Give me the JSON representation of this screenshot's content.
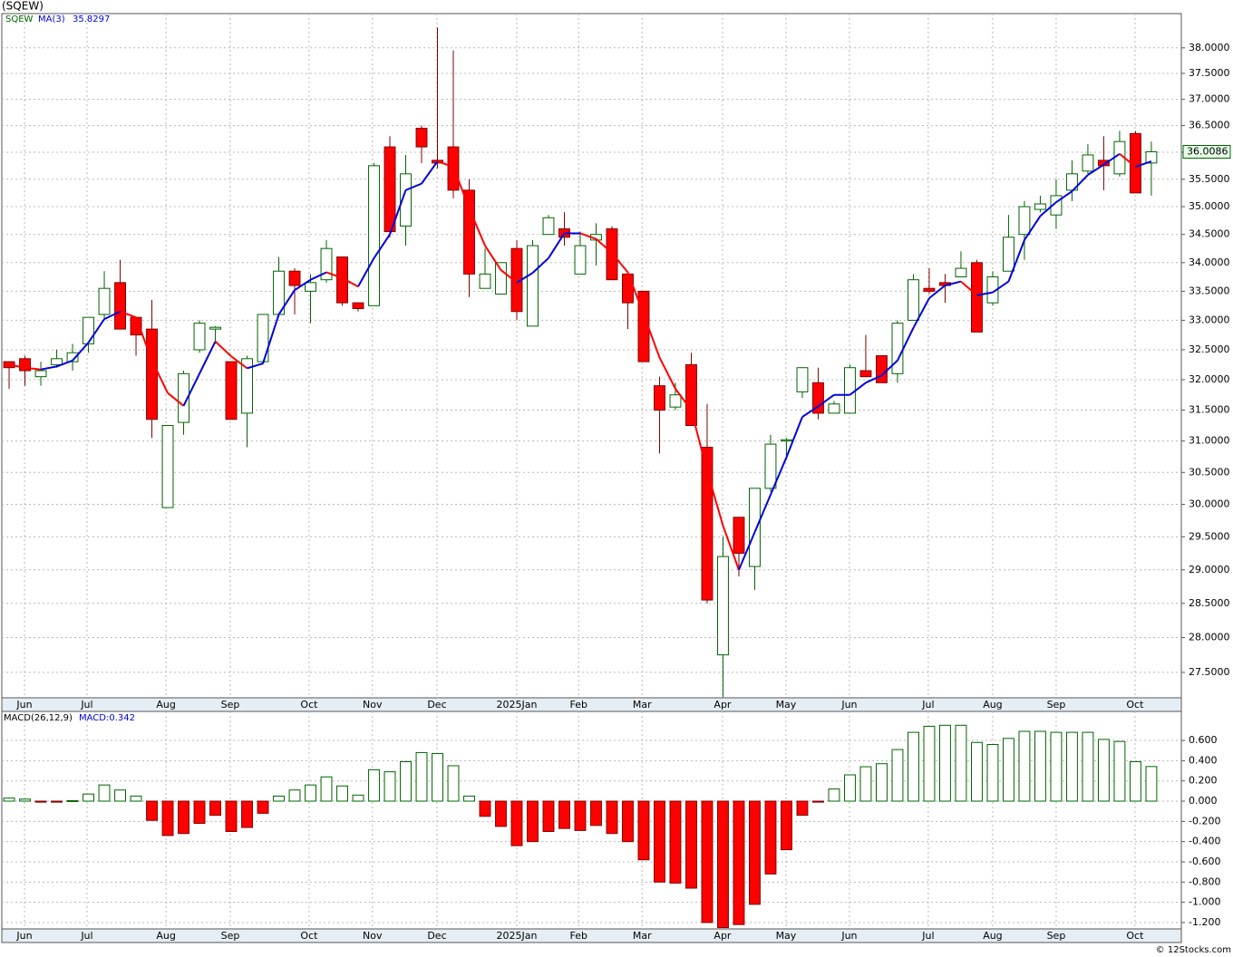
{
  "title": "(SQEW)",
  "footer": "© 12Stocks.com",
  "chart_data": [
    {
      "type": "candlestick",
      "name": "SQEW",
      "log_scale": true,
      "grid": true,
      "up_color": "#006400",
      "down_color": "#ff0000",
      "xlim": [
        -0.46,
        73.89
      ],
      "xticks": [
        {
          "value": 0.97,
          "label": "Jun"
        },
        {
          "value": 4.91,
          "label": "Jul"
        },
        {
          "value": 9.89,
          "label": "Aug"
        },
        {
          "value": 13.94,
          "label": "Sep"
        },
        {
          "value": 18.91,
          "label": "Oct"
        },
        {
          "value": 22.9,
          "label": "Nov"
        },
        {
          "value": 26.97,
          "label": "Dec"
        },
        {
          "value": 32,
          "label": "2025Jan"
        },
        {
          "value": 35.9,
          "label": "Feb"
        },
        {
          "value": 39.9,
          "label": "Mar"
        },
        {
          "value": 44.97,
          "label": "Apr"
        },
        {
          "value": 48.97,
          "label": "May"
        },
        {
          "value": 52.97,
          "label": "Jun"
        },
        {
          "value": 57.94,
          "label": "Jul"
        },
        {
          "value": 62,
          "label": "Aug"
        },
        {
          "value": 66,
          "label": "Sep"
        },
        {
          "value": 70.97,
          "label": "Oct"
        }
      ],
      "ylim": [
        27.14,
        38.68
      ],
      "yticks": [
        {
          "value": 27.5,
          "label": "27.5000"
        },
        {
          "value": 28,
          "label": "28.0000"
        },
        {
          "value": 28.5,
          "label": "28.5000"
        },
        {
          "value": 29,
          "label": "29.0000"
        },
        {
          "value": 29.5,
          "label": "29.5000"
        },
        {
          "value": 30,
          "label": "30.0000"
        },
        {
          "value": 30.5,
          "label": "30.5000"
        },
        {
          "value": 31,
          "label": "31.0000"
        },
        {
          "value": 31.5,
          "label": "31.5000"
        },
        {
          "value": 32,
          "label": "32.0000"
        },
        {
          "value": 32.5,
          "label": "32.5000"
        },
        {
          "value": 33,
          "label": "33.0000"
        },
        {
          "value": 33.5,
          "label": "33.5000"
        },
        {
          "value": 34,
          "label": "34.0000"
        },
        {
          "value": 34.5,
          "label": "34.5000"
        },
        {
          "value": 35,
          "label": "35.0000"
        },
        {
          "value": 35.5,
          "label": "35.5000"
        },
        {
          "value": 36,
          "label": "36.0000"
        },
        {
          "value": 36.5,
          "label": "36.5000"
        },
        {
          "value": 37,
          "label": "37.0000"
        },
        {
          "value": 37.5,
          "label": "37.5000"
        },
        {
          "value": 38,
          "label": "38.0000"
        }
      ],
      "open": [
        32.3,
        32.35,
        32.05,
        32.25,
        32.3,
        32.6,
        33.1,
        33.65,
        33.05,
        32.85,
        29.95,
        31.3,
        32.5,
        32.85,
        32.3,
        31.45,
        32.3,
        33.1,
        33.85,
        33.5,
        33.7,
        34.1,
        33.3,
        33.25,
        36.1,
        34.65,
        36.45,
        35.85,
        36.1,
        35.3,
        33.55,
        33.45,
        34.25,
        32.9,
        34.5,
        34.6,
        33.8,
        34.4,
        34.6,
        33.8,
        33.5,
        31.9,
        31.55,
        32.25,
        30.9,
        27.75,
        29.8,
        29.05,
        30.25,
        31.0,
        31.8,
        31.95,
        31.45,
        31.45,
        32.15,
        32.4,
        32.1,
        33.0,
        33.55,
        33.65,
        33.75,
        34.0,
        33.3,
        33.85,
        34.5,
        34.95,
        34.85,
        35.3,
        35.65,
        35.85,
        35.6,
        36.35,
        35.8
      ],
      "high": [
        32.3,
        32.4,
        32.3,
        32.5,
        32.6,
        33.05,
        33.85,
        34.05,
        33.05,
        33.35,
        31.25,
        32.15,
        33.0,
        32.9,
        32.3,
        32.4,
        33.1,
        34.1,
        33.9,
        33.8,
        34.4,
        34.1,
        33.3,
        35.8,
        36.3,
        35.95,
        36.5,
        38.4,
        37.95,
        35.5,
        34.25,
        34.0,
        34.4,
        34.4,
        34.85,
        34.9,
        34.55,
        34.7,
        34.65,
        33.8,
        33.5,
        32.05,
        31.95,
        32.45,
        31.6,
        29.5,
        29.8,
        30.25,
        31.1,
        31.05,
        32.2,
        32.2,
        31.65,
        32.25,
        32.75,
        32.4,
        33.0,
        33.8,
        33.9,
        33.8,
        34.2,
        34.05,
        33.85,
        34.85,
        35.1,
        35.2,
        35.5,
        35.85,
        36.15,
        36.3,
        36.4,
        36.4,
        36.2
      ],
      "low": [
        31.85,
        31.9,
        31.9,
        32.2,
        32.15,
        32.45,
        33.0,
        32.85,
        32.4,
        31.05,
        29.95,
        31.1,
        32.45,
        32.6,
        31.35,
        30.9,
        32.25,
        33.05,
        33.1,
        32.95,
        33.65,
        33.25,
        33.15,
        33.25,
        34.45,
        34.3,
        35.8,
        35.7,
        35.15,
        33.4,
        33.55,
        33.45,
        33.0,
        32.9,
        34.5,
        34.3,
        33.8,
        33.95,
        33.7,
        32.85,
        32.3,
        30.8,
        31.5,
        31.25,
        28.5,
        27.15,
        28.9,
        28.7,
        30.2,
        30.7,
        31.7,
        31.35,
        31.45,
        31.45,
        32.05,
        31.95,
        31.95,
        33.0,
        33.45,
        33.3,
        33.75,
        32.8,
        33.25,
        33.85,
        34.05,
        34.9,
        34.6,
        35.1,
        35.6,
        35.3,
        35.55,
        35.25,
        35.2
      ],
      "close": [
        32.2,
        32.15,
        32.15,
        32.35,
        32.45,
        33.05,
        33.55,
        32.85,
        32.75,
        31.35,
        31.25,
        32.1,
        32.95,
        32.88,
        31.35,
        32.35,
        33.1,
        33.85,
        33.6,
        33.65,
        34.25,
        33.3,
        33.2,
        35.75,
        34.55,
        35.6,
        36.1,
        35.8,
        35.3,
        33.8,
        33.8,
        34.0,
        33.15,
        34.3,
        34.8,
        34.45,
        34.3,
        34.5,
        33.7,
        33.3,
        32.3,
        31.5,
        31.75,
        31.25,
        28.55,
        29.2,
        29.25,
        30.25,
        30.95,
        31.02,
        32.2,
        31.45,
        31.6,
        32.2,
        32.05,
        31.95,
        32.95,
        33.7,
        33.5,
        33.6,
        33.9,
        32.8,
        33.75,
        34.45,
        35.0,
        35.05,
        35.2,
        35.6,
        35.95,
        35.75,
        36.2,
        35.25,
        36.0086
      ],
      "ma": {
        "name": "MA(3)",
        "up_color": "#0000dd",
        "down_color": "#ff0000",
        "values": [
          32.25,
          32.2,
          32.17,
          32.22,
          32.32,
          32.62,
          33.02,
          33.15,
          33.05,
          32.32,
          31.78,
          31.57,
          32.1,
          32.64,
          32.39,
          32.19,
          32.27,
          33.1,
          33.52,
          33.7,
          33.83,
          33.73,
          33.58,
          34.08,
          34.5,
          35.3,
          35.42,
          35.83,
          35.73,
          34.97,
          34.3,
          33.87,
          33.65,
          33.82,
          34.08,
          34.52,
          34.52,
          34.42,
          34.17,
          33.83,
          33.1,
          32.37,
          31.85,
          31.5,
          30.52,
          29.67,
          29.0,
          29.57,
          30.15,
          30.74,
          31.39,
          31.56,
          31.75,
          31.75,
          31.95,
          32.07,
          32.32,
          32.87,
          33.38,
          33.6,
          33.67,
          33.43,
          33.48,
          33.67,
          34.4,
          34.83,
          35.08,
          35.28,
          35.58,
          35.77,
          35.97,
          35.73,
          35.8297
        ]
      }
    },
    {
      "type": "histogram",
      "name": "MACD(26,12,9)",
      "legend": "MACD:0.342",
      "grid": true,
      "up_color": "#006400",
      "down_color": "#ff0000",
      "xlim": [
        -0.46,
        73.89
      ],
      "xticks": [
        {
          "value": 0.97,
          "label": "Jun"
        },
        {
          "value": 4.91,
          "label": "Jul"
        },
        {
          "value": 9.89,
          "label": "Aug"
        },
        {
          "value": 13.94,
          "label": "Sep"
        },
        {
          "value": 18.91,
          "label": "Oct"
        },
        {
          "value": 22.9,
          "label": "Nov"
        },
        {
          "value": 26.97,
          "label": "Dec"
        },
        {
          "value": 32,
          "label": "2025Jan"
        },
        {
          "value": 35.9,
          "label": "Feb"
        },
        {
          "value": 39.9,
          "label": "Mar"
        },
        {
          "value": 44.97,
          "label": "Apr"
        },
        {
          "value": 48.97,
          "label": "May"
        },
        {
          "value": 52.97,
          "label": "Jun"
        },
        {
          "value": 57.94,
          "label": "Jul"
        },
        {
          "value": 62,
          "label": "Aug"
        },
        {
          "value": 66,
          "label": "Sep"
        },
        {
          "value": 70.97,
          "label": "Oct"
        }
      ],
      "ylim": [
        -1.263,
        0.887
      ],
      "yticks": [
        {
          "value": 0.6,
          "label": "0.600"
        },
        {
          "value": 0.4,
          "label": "0.400"
        },
        {
          "value": 0.2,
          "label": "0.200"
        },
        {
          "value": 0,
          "label": "0.000"
        },
        {
          "value": -0.2,
          "label": "-0.200"
        },
        {
          "value": -0.4,
          "label": "-0.400"
        },
        {
          "value": -0.6,
          "label": "-0.600"
        },
        {
          "value": -0.8,
          "label": "-0.800"
        },
        {
          "value": -1,
          "label": "-1.000"
        },
        {
          "value": -1.2,
          "label": "-1.200"
        }
      ],
      "values": [
        0.03,
        0.02,
        -0.01,
        -0.01,
        0.005,
        0.07,
        0.16,
        0.11,
        0.05,
        -0.19,
        -0.34,
        -0.32,
        -0.22,
        -0.14,
        -0.3,
        -0.26,
        -0.12,
        0.05,
        0.11,
        0.16,
        0.24,
        0.15,
        0.06,
        0.31,
        0.29,
        0.39,
        0.48,
        0.47,
        0.35,
        0.05,
        -0.15,
        -0.25,
        -0.44,
        -0.4,
        -0.3,
        -0.27,
        -0.29,
        -0.24,
        -0.32,
        -0.4,
        -0.58,
        -0.8,
        -0.81,
        -0.86,
        -1.2,
        -1.25,
        -1.22,
        -1.02,
        -0.72,
        -0.48,
        -0.14,
        -0.01,
        0.12,
        0.26,
        0.34,
        0.37,
        0.51,
        0.68,
        0.74,
        0.75,
        0.75,
        0.58,
        0.56,
        0.62,
        0.69,
        0.69,
        0.68,
        0.68,
        0.68,
        0.61,
        0.59,
        0.39,
        0.342
      ]
    }
  ]
}
